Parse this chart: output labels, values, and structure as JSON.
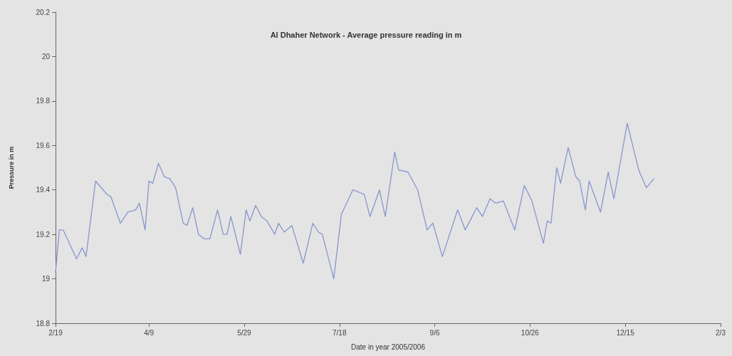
{
  "chart_data": {
    "type": "line",
    "title": "Al Dhaher Network - Average pressure reading in m",
    "xlabel": "Date in year 2005/2006",
    "ylabel": "Pressure in m",
    "x": [
      "2005-02-19",
      "2005-02-21",
      "2005-02-23",
      "2005-03-02",
      "2005-03-05",
      "2005-03-07",
      "2005-03-12",
      "2005-03-18",
      "2005-03-20",
      "2005-03-25",
      "2005-03-29",
      "2005-04-02",
      "2005-04-04",
      "2005-04-07",
      "2005-04-09",
      "2005-04-11",
      "2005-04-14",
      "2005-04-17",
      "2005-04-20",
      "2005-04-23",
      "2005-04-27",
      "2005-04-29",
      "2005-05-02",
      "2005-05-05",
      "2005-05-08",
      "2005-05-11",
      "2005-05-15",
      "2005-05-18",
      "2005-05-20",
      "2005-05-22",
      "2005-05-27",
      "2005-05-30",
      "2005-06-01",
      "2005-06-04",
      "2005-06-07",
      "2005-06-10",
      "2005-06-14",
      "2005-06-16",
      "2005-06-19",
      "2005-06-23",
      "2005-06-29",
      "2005-07-04",
      "2005-07-07",
      "2005-07-09",
      "2005-07-15",
      "2005-07-19",
      "2005-07-25",
      "2005-07-31",
      "2005-08-03",
      "2005-08-08",
      "2005-08-11",
      "2005-08-16",
      "2005-08-18",
      "2005-08-23",
      "2005-08-28",
      "2005-09-02",
      "2005-09-05",
      "2005-09-10",
      "2005-09-18",
      "2005-09-22",
      "2005-09-28",
      "2005-10-01",
      "2005-10-05",
      "2005-10-08",
      "2005-10-12",
      "2005-10-18",
      "2005-10-23",
      "2005-10-27",
      "2005-11-02",
      "2005-11-04",
      "2005-11-06",
      "2005-11-09",
      "2005-11-11",
      "2005-11-15",
      "2005-11-19",
      "2005-11-21",
      "2005-11-24",
      "2005-11-26",
      "2005-12-02",
      "2005-12-06",
      "2005-12-09",
      "2005-12-16",
      "2005-12-22",
      "2005-12-26",
      "2005-12-30"
    ],
    "series": [
      {
        "color": "#8796cf",
        "values": [
          19.03,
          19.22,
          19.22,
          19.09,
          19.14,
          19.1,
          19.44,
          19.38,
          19.37,
          19.25,
          19.3,
          19.31,
          19.34,
          19.22,
          19.44,
          19.43,
          19.52,
          19.46,
          19.45,
          19.41,
          19.25,
          19.24,
          19.32,
          19.2,
          19.18,
          19.18,
          19.31,
          19.2,
          19.2,
          19.28,
          19.11,
          19.31,
          19.26,
          19.33,
          19.28,
          19.26,
          19.2,
          19.25,
          19.21,
          19.24,
          19.07,
          19.25,
          19.21,
          19.2,
          19.0,
          19.29,
          19.4,
          19.38,
          19.28,
          19.4,
          19.28,
          19.57,
          19.49,
          19.48,
          19.4,
          19.22,
          19.25,
          19.1,
          19.31,
          19.22,
          19.32,
          19.28,
          19.36,
          19.34,
          19.35,
          19.22,
          19.42,
          19.35,
          19.16,
          19.26,
          19.25,
          19.5,
          19.43,
          19.59,
          19.46,
          19.44,
          19.31,
          19.44,
          19.3,
          19.48,
          19.36,
          19.7,
          19.49,
          19.41,
          19.45
        ]
      }
    ],
    "xlim": [
      "2005-02-19",
      "2006-02-03"
    ],
    "xticks": [
      {
        "value": "2005-02-19",
        "label": "2/19"
      },
      {
        "value": "2005-04-09",
        "label": "4/9"
      },
      {
        "value": "2005-05-29",
        "label": "5/29"
      },
      {
        "value": "2005-07-18",
        "label": "7/18"
      },
      {
        "value": "2005-09-06",
        "label": "9/6"
      },
      {
        "value": "2005-10-26",
        "label": "10/26"
      },
      {
        "value": "2005-12-15",
        "label": "12/15"
      },
      {
        "value": "2006-02-03",
        "label": "2/3"
      }
    ],
    "ylim": [
      18.8,
      20.2
    ],
    "yticks": [
      18.8,
      19,
      19.2,
      19.4,
      19.6,
      19.8,
      20,
      20.2
    ],
    "grid": false,
    "marker": "none",
    "line_style": "solid"
  }
}
